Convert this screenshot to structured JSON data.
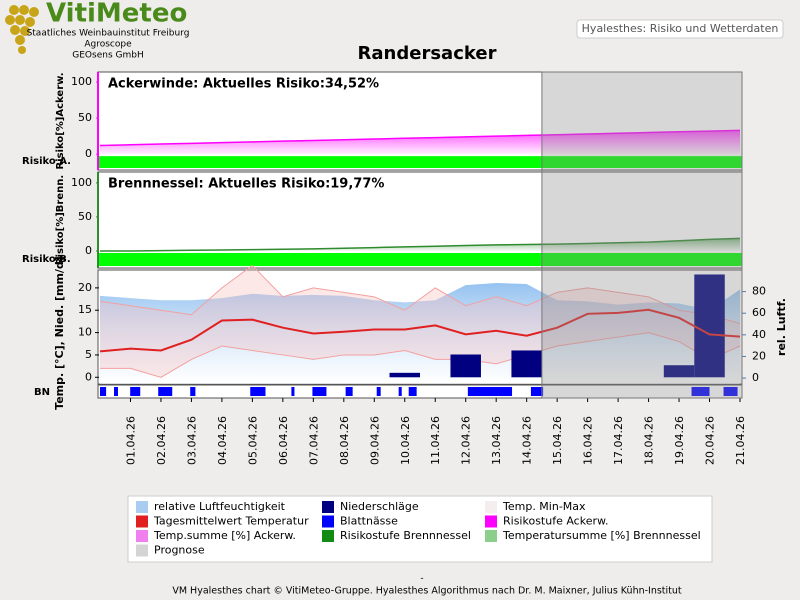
{
  "header": {
    "logo": "VitiMeteo",
    "org_lines": [
      "Staatliches Weinbauinstitut Freiburg",
      "Agroscope",
      "GEOsens GmbH"
    ],
    "badge": "Hyalesthes: Risiko und Wetterdaten",
    "title": "Randersacker"
  },
  "chart_data": [
    {
      "type": "area",
      "title": "Ackerwinde: Aktuelles Risiko:34,52%",
      "ylabel": "Risiko[%]Ackerw.",
      "risk_label": "Risiko A.",
      "ylim": [
        -22,
        114
      ],
      "yticks": [
        0,
        50,
        100
      ],
      "risk_color": "#00ff00",
      "series": [
        {
          "color": "#ff00ff",
          "values": [
            12,
            13,
            14,
            15,
            16,
            17,
            18,
            19,
            20,
            21,
            22,
            23,
            24,
            25,
            26,
            27,
            28,
            29,
            30,
            31,
            32,
            33
          ]
        }
      ]
    },
    {
      "type": "area",
      "title": "Brennnessel: Aktuelles Risiko:19,77%",
      "ylabel": "Risiko[%]Brenn.",
      "risk_label": "Risiko B.",
      "ylim": [
        -25,
        116
      ],
      "yticks": [
        0,
        50,
        100
      ],
      "risk_color": "#00ff00",
      "series": [
        {
          "color": "#2e8b2e",
          "values": [
            0,
            0,
            0.5,
            1,
            1.5,
            2,
            2.5,
            3,
            4,
            5,
            6,
            7,
            8,
            9,
            9.5,
            10,
            11,
            12,
            13,
            15,
            17,
            18.5
          ]
        }
      ]
    },
    {
      "type": "weather",
      "ylabel": "Temp. [°C], Nied. [mm/d]",
      "y2label": "rel. Luftf.",
      "strip_label": "BN",
      "categories": [
        null,
        "01.04.26",
        "02.04.26",
        "03.04.26",
        "04.04.26",
        "05.04.26",
        "06.04.26",
        "07.04.26",
        "08.04.26",
        "09.04.26",
        "10.04.26",
        "11.04.26",
        "12.04.26",
        "13.04.26",
        "14.04.26",
        "15.04.26",
        "16.04.26",
        "17.04.26",
        "18.04.26",
        "19.04.26",
        "20.04.26",
        "21.04.26"
      ],
      "forecast_from": "15.04.26",
      "ylim": [
        -1.5,
        24
      ],
      "yticks": [
        0,
        5,
        10,
        15,
        20
      ],
      "y2lim": [
        -5.5,
        100
      ],
      "y2ticks": [
        0,
        20,
        40,
        60,
        80
      ],
      "series": [
        {
          "kind": "area",
          "axis": "y2",
          "color": "#8fbfef",
          "values": [
            76,
            74,
            72,
            72,
            74,
            78,
            76,
            77,
            76,
            72,
            70,
            72,
            86,
            88,
            87,
            72,
            71,
            68,
            70,
            69,
            63,
            82
          ]
        },
        {
          "kind": "band",
          "color": "#f3a0a0",
          "min": [
            2,
            2,
            0,
            4,
            7,
            6,
            5,
            4,
            5,
            5,
            6,
            4,
            4,
            3,
            5,
            7,
            8,
            9,
            10,
            8,
            4,
            7
          ],
          "max": [
            17,
            16,
            15,
            14,
            20,
            25,
            18,
            20,
            19,
            18,
            15,
            20,
            16,
            18,
            16,
            19,
            20,
            19,
            18,
            15,
            14,
            12
          ]
        },
        {
          "kind": "bar",
          "color": "#000080",
          "values": [
            0,
            0,
            0,
            0,
            0,
            0,
            0,
            0,
            0,
            0,
            1,
            0,
            5.1,
            0,
            6,
            0,
            0,
            0,
            0,
            2.7,
            23,
            0
          ]
        },
        {
          "kind": "line",
          "color": "#e02020",
          "values": [
            5.8,
            6.4,
            6.0,
            8.4,
            12.7,
            12.9,
            11.1,
            9.8,
            10.2,
            10.7,
            10.7,
            11.6,
            9.6,
            10.4,
            9.3,
            11.1,
            14.2,
            14.4,
            15.1,
            13.3,
            9.6,
            9.1
          ]
        }
      ],
      "leaf_wetness": {
        "color": "#0000ff",
        "intervals": [
          [
            0,
            0.2
          ],
          [
            0.46,
            0.59
          ],
          [
            0.99,
            1.32
          ],
          [
            1.91,
            2.37
          ],
          [
            2.96,
            3.13
          ],
          [
            4.93,
            5.43
          ],
          [
            6.28,
            6.38
          ],
          [
            6.97,
            7.43
          ],
          [
            8.06,
            8.29
          ],
          [
            9.08,
            9.21
          ],
          [
            9.8,
            9.9
          ],
          [
            10.13,
            10.39
          ],
          [
            12.07,
            13.52
          ],
          [
            14.14,
            14.54
          ],
          [
            19.41,
            20.0
          ],
          [
            20.46,
            20.92
          ]
        ]
      }
    }
  ],
  "legend": [
    {
      "name": "relative Luftfeuchtigkeit",
      "color": "#a8cdf0"
    },
    {
      "name": "Niederschläge",
      "color": "#000080"
    },
    {
      "name": "Temp. Min-Max",
      "color": "#f4eeee"
    },
    {
      "name": "Tagesmittelwert Temperatur",
      "color": "#e02020"
    },
    {
      "name": "Blattnässe",
      "color": "#0000ff"
    },
    {
      "name": "Risikostufe Ackerw.",
      "color": "#ff00ff"
    },
    {
      "name": "Temp.summe [%] Ackerw.",
      "color": "#f080f0"
    },
    {
      "name": "Risikostufe Brennnessel",
      "color": "#138a13"
    },
    {
      "name": "Temperatursumme [%] Brennnessel",
      "color": "#8ccf8c"
    },
    {
      "name": "Prognose",
      "color": "#d4d4d4"
    }
  ],
  "footer": {
    "dash": "-",
    "text": "VM Hyalesthes chart © VitiMeteo-Gruppe. Hyalesthes Algorithmus nach Dr. M. Maixner, Julius Kühn-Institut"
  }
}
